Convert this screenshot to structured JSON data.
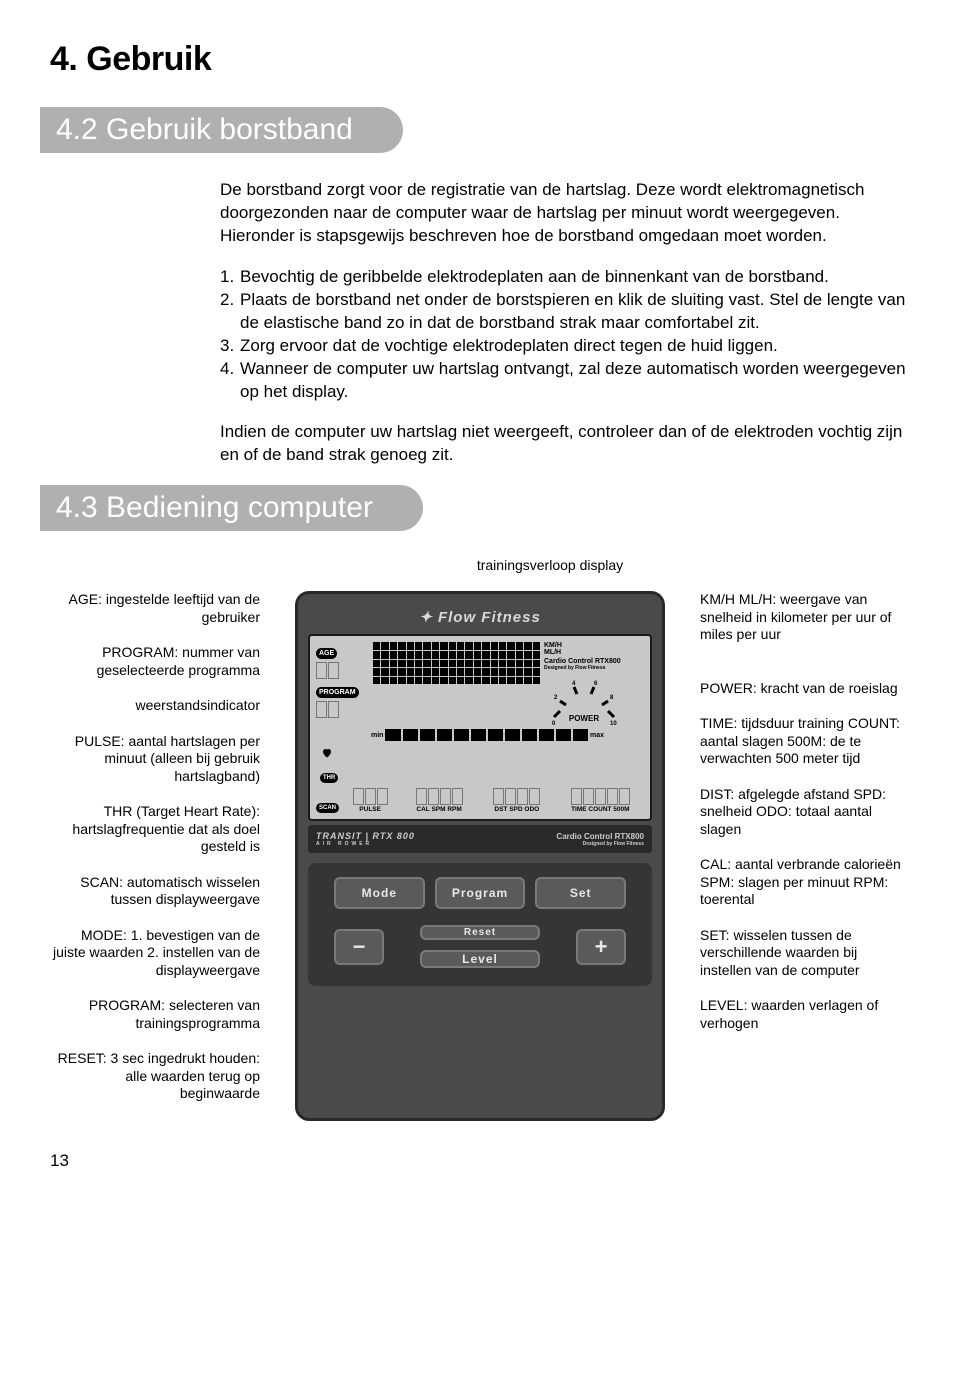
{
  "page": {
    "title": "4. Gebruik",
    "page_number": "13"
  },
  "section_42": {
    "heading": "4.2 Gebruik borstband",
    "intro": "De borstband zorgt voor de registratie van de hartslag. Deze wordt elektromagnetisch doorgezonden naar de computer waar de hartslag per minuut wordt weergegeven. Hieronder is stapsgewijs beschreven hoe de borstband omgedaan moet worden.",
    "steps": [
      "Bevochtig de geribbelde elektrodeplaten aan de binnenkant van de borstband.",
      "Plaats de borstband net onder de borstspieren en klik de sluiting vast. Stel de lengte van de elastische band zo in dat de borstband strak maar comfortabel zit.",
      "Zorg ervoor dat de vochtige elektrodeplaten direct tegen de huid liggen.",
      "Wanneer de computer uw hartslag ontvangt, zal deze automatisch worden weergegeven op het display."
    ],
    "outro": "Indien de computer uw hartslag niet weergeeft, controleer dan of de elektroden vochtig zijn en of de band strak genoeg zit."
  },
  "section_43": {
    "heading": "4.3 Bediening computer",
    "top_label": "trainingsverloop display",
    "left_labels": [
      "AGE: ingestelde leeftijd van de gebruiker",
      "PROGRAM: nummer van geselecteerde programma",
      "weerstandsindicator",
      "PULSE: aantal hartslagen per minuut (alleen bij gebruik hartslagband)",
      "THR (Target Heart Rate): hartslagfrequentie dat als doel gesteld is",
      "SCAN: automatisch wisselen tussen displayweergave",
      "MODE:  1. bevestigen van de juiste waarden 2. instellen van de displayweergave",
      "PROGRAM: selecteren van trainingsprogramma",
      "RESET: 3 sec ingedrukt houden: alle waarden terug op beginwaarde"
    ],
    "right_labels": [
      "KM/H ML/H: weergave van snelheid in kilometer per uur of miles per uur",
      "POWER: kracht van de roeislag",
      "TIME: tijdsduur training COUNT: aantal slagen 500M: de te verwachten 500 meter tijd",
      "DIST: afgelegde afstand SPD: snelheid ODO: totaal aantal slagen",
      "CAL: aantal verbrande calorieën SPM: slagen per minuut RPM: toerental",
      "SET: wisselen tussen de verschillende waarden bij instellen van de computer",
      "LEVEL: waarden verlagen of verhogen"
    ]
  },
  "console": {
    "logo": "Flow Fitness",
    "badges": {
      "age": "AGE",
      "program": "PROGRAM",
      "thr": "THR",
      "scan": "SCAN"
    },
    "units": {
      "km": "KM/H",
      "ml": "ML/H"
    },
    "cardio": "Cardio Control RTX800",
    "designed": "Designed by Flow Fitness",
    "power_label": "POWER",
    "power_ticks": [
      "0",
      "2",
      "4",
      "6",
      "8",
      "10"
    ],
    "bar": {
      "min": "min",
      "max": "max"
    },
    "bottom": {
      "pulse": "PULSE",
      "cal": "CAL SPM RPM",
      "dst": "DST SPD ODO",
      "time": "TIME COUNT 500M"
    },
    "model": {
      "left": "TRANSIT | RTX 800",
      "left_sub": "AIR ROWER",
      "right": "Cardio Control RTX800",
      "right_sub": "Designed by Flow Fitness"
    },
    "buttons": {
      "mode": "Mode",
      "program": "Program",
      "set": "Set",
      "reset": "Reset",
      "level": "Level",
      "minus": "−",
      "plus": "+"
    },
    "colors": {
      "console_bg": "#4a4a4a",
      "lcd_bg": "#c8c8c8",
      "btn_bg": "#5a5a5a",
      "heading_bg": "#b0b0b0"
    }
  }
}
